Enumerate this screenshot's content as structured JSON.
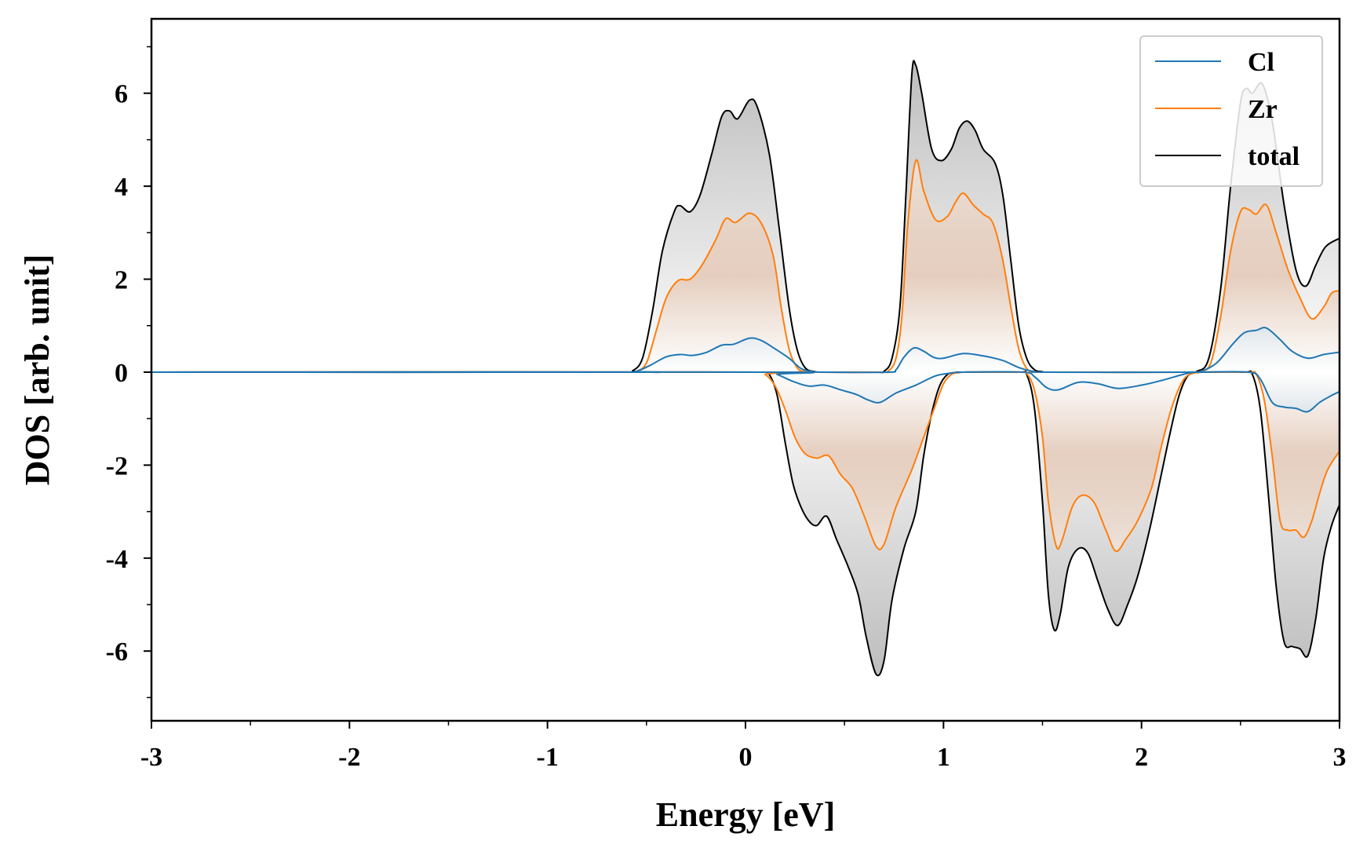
{
  "chart_data": {
    "type": "line",
    "xlabel": "Energy [eV]",
    "ylabel": "DOS [arb. unit]",
    "xlim": [
      -3,
      3
    ],
    "ylim": [
      -7.5,
      7.6
    ],
    "xticks": [
      -3,
      -2,
      -1,
      0,
      1,
      2,
      3
    ],
    "xtick_labels": [
      "-3",
      "-2",
      "-1",
      "0",
      "1",
      "2",
      "3"
    ],
    "yticks": [
      -6,
      -4,
      -2,
      0,
      2,
      4,
      6
    ],
    "ytick_labels": [
      "-6",
      "-4",
      "-2",
      "0",
      "2",
      "4",
      "6"
    ],
    "grid": false,
    "legend_position": "top-right",
    "filled_between_curves_and_zero": true,
    "series": [
      {
        "name": "Cl",
        "color": "#1f77b4",
        "up": [
          [
            -3,
            0
          ],
          [
            -0.62,
            0
          ],
          [
            -0.55,
            0.02
          ],
          [
            -0.48,
            0.15
          ],
          [
            -0.4,
            0.33
          ],
          [
            -0.33,
            0.38
          ],
          [
            -0.27,
            0.36
          ],
          [
            -0.2,
            0.42
          ],
          [
            -0.12,
            0.58
          ],
          [
            -0.06,
            0.6
          ],
          [
            0.02,
            0.73
          ],
          [
            0.08,
            0.68
          ],
          [
            0.15,
            0.5
          ],
          [
            0.22,
            0.3
          ],
          [
            0.28,
            0.08
          ],
          [
            0.34,
            0.01
          ],
          [
            0.4,
            0
          ],
          [
            0.72,
            0
          ],
          [
            0.76,
            0.05
          ],
          [
            0.8,
            0.32
          ],
          [
            0.85,
            0.52
          ],
          [
            0.9,
            0.45
          ],
          [
            0.95,
            0.32
          ],
          [
            1.0,
            0.3
          ],
          [
            1.1,
            0.4
          ],
          [
            1.2,
            0.35
          ],
          [
            1.3,
            0.25
          ],
          [
            1.38,
            0.1
          ],
          [
            1.45,
            0.02
          ],
          [
            1.52,
            0
          ],
          [
            2.22,
            0
          ],
          [
            2.3,
            0.02
          ],
          [
            2.38,
            0.2
          ],
          [
            2.46,
            0.6
          ],
          [
            2.52,
            0.85
          ],
          [
            2.58,
            0.9
          ],
          [
            2.63,
            0.95
          ],
          [
            2.7,
            0.7
          ],
          [
            2.76,
            0.45
          ],
          [
            2.84,
            0.3
          ],
          [
            2.92,
            0.38
          ],
          [
            3.0,
            0.43
          ]
        ],
        "down": [
          [
            -3,
            0
          ],
          [
            0.1,
            0
          ],
          [
            0.16,
            -0.05
          ],
          [
            0.24,
            -0.2
          ],
          [
            0.32,
            -0.3
          ],
          [
            0.4,
            -0.28
          ],
          [
            0.48,
            -0.38
          ],
          [
            0.56,
            -0.48
          ],
          [
            0.62,
            -0.6
          ],
          [
            0.68,
            -0.65
          ],
          [
            0.76,
            -0.45
          ],
          [
            0.86,
            -0.28
          ],
          [
            0.96,
            -0.08
          ],
          [
            1.04,
            -0.02
          ],
          [
            1.1,
            0
          ],
          [
            1.4,
            0
          ],
          [
            1.46,
            -0.1
          ],
          [
            1.52,
            -0.33
          ],
          [
            1.58,
            -0.38
          ],
          [
            1.68,
            -0.22
          ],
          [
            1.78,
            -0.25
          ],
          [
            1.88,
            -0.35
          ],
          [
            2.0,
            -0.28
          ],
          [
            2.1,
            -0.18
          ],
          [
            2.2,
            -0.06
          ],
          [
            2.25,
            -0.01
          ],
          [
            2.3,
            0
          ],
          [
            2.54,
            0
          ],
          [
            2.6,
            -0.15
          ],
          [
            2.66,
            -0.65
          ],
          [
            2.72,
            -0.75
          ],
          [
            2.78,
            -0.78
          ],
          [
            2.84,
            -0.85
          ],
          [
            2.9,
            -0.65
          ],
          [
            2.96,
            -0.5
          ],
          [
            3.0,
            -0.42
          ]
        ]
      },
      {
        "name": "Zr",
        "color": "#ff7f0e",
        "up": [
          [
            -3,
            0
          ],
          [
            -0.6,
            0
          ],
          [
            -0.55,
            0.02
          ],
          [
            -0.5,
            0.2
          ],
          [
            -0.45,
            0.9
          ],
          [
            -0.4,
            1.6
          ],
          [
            -0.34,
            1.97
          ],
          [
            -0.28,
            2.0
          ],
          [
            -0.22,
            2.3
          ],
          [
            -0.15,
            2.85
          ],
          [
            -0.1,
            3.3
          ],
          [
            -0.05,
            3.22
          ],
          [
            0.02,
            3.42
          ],
          [
            0.08,
            3.2
          ],
          [
            0.14,
            2.5
          ],
          [
            0.18,
            1.4
          ],
          [
            0.22,
            0.5
          ],
          [
            0.26,
            0.1
          ],
          [
            0.3,
            0.01
          ],
          [
            0.35,
            0
          ],
          [
            0.68,
            0
          ],
          [
            0.72,
            0.02
          ],
          [
            0.76,
            0.3
          ],
          [
            0.79,
            1.2
          ],
          [
            0.82,
            3.2
          ],
          [
            0.86,
            4.55
          ],
          [
            0.9,
            3.9
          ],
          [
            0.96,
            3.28
          ],
          [
            1.02,
            3.35
          ],
          [
            1.06,
            3.65
          ],
          [
            1.1,
            3.85
          ],
          [
            1.15,
            3.6
          ],
          [
            1.2,
            3.4
          ],
          [
            1.25,
            3.2
          ],
          [
            1.3,
            2.4
          ],
          [
            1.34,
            1.4
          ],
          [
            1.38,
            0.5
          ],
          [
            1.42,
            0.08
          ],
          [
            1.46,
            0.01
          ],
          [
            1.5,
            0
          ],
          [
            2.25,
            0
          ],
          [
            2.3,
            0.02
          ],
          [
            2.35,
            0.2
          ],
          [
            2.4,
            1.2
          ],
          [
            2.45,
            2.6
          ],
          [
            2.5,
            3.45
          ],
          [
            2.54,
            3.5
          ],
          [
            2.58,
            3.4
          ],
          [
            2.63,
            3.6
          ],
          [
            2.68,
            3.0
          ],
          [
            2.74,
            2.2
          ],
          [
            2.8,
            1.6
          ],
          [
            2.86,
            1.15
          ],
          [
            2.92,
            1.4
          ],
          [
            2.96,
            1.7
          ],
          [
            3.0,
            1.75
          ]
        ],
        "down": [
          [
            -3,
            0
          ],
          [
            0.05,
            0
          ],
          [
            0.1,
            -0.05
          ],
          [
            0.15,
            -0.3
          ],
          [
            0.2,
            -0.8
          ],
          [
            0.25,
            -1.4
          ],
          [
            0.3,
            -1.75
          ],
          [
            0.36,
            -1.85
          ],
          [
            0.42,
            -1.8
          ],
          [
            0.48,
            -2.2
          ],
          [
            0.54,
            -2.5
          ],
          [
            0.6,
            -3.1
          ],
          [
            0.66,
            -3.75
          ],
          [
            0.7,
            -3.7
          ],
          [
            0.76,
            -2.9
          ],
          [
            0.84,
            -2.1
          ],
          [
            0.9,
            -1.4
          ],
          [
            0.96,
            -0.7
          ],
          [
            1.0,
            -0.25
          ],
          [
            1.04,
            -0.05
          ],
          [
            1.08,
            -0.01
          ],
          [
            1.12,
            0
          ],
          [
            1.38,
            0
          ],
          [
            1.42,
            -0.03
          ],
          [
            1.46,
            -0.4
          ],
          [
            1.5,
            -1.4
          ],
          [
            1.53,
            -2.8
          ],
          [
            1.57,
            -3.75
          ],
          [
            1.6,
            -3.6
          ],
          [
            1.65,
            -2.9
          ],
          [
            1.7,
            -2.65
          ],
          [
            1.76,
            -2.8
          ],
          [
            1.82,
            -3.4
          ],
          [
            1.87,
            -3.85
          ],
          [
            1.92,
            -3.6
          ],
          [
            1.98,
            -3.2
          ],
          [
            2.05,
            -2.5
          ],
          [
            2.1,
            -1.6
          ],
          [
            2.15,
            -0.8
          ],
          [
            2.2,
            -0.25
          ],
          [
            2.24,
            -0.05
          ],
          [
            2.28,
            -0.01
          ],
          [
            2.32,
            0
          ],
          [
            2.54,
            0
          ],
          [
            2.58,
            -0.05
          ],
          [
            2.62,
            -0.6
          ],
          [
            2.66,
            -1.8
          ],
          [
            2.7,
            -3.2
          ],
          [
            2.74,
            -3.4
          ],
          [
            2.78,
            -3.4
          ],
          [
            2.82,
            -3.55
          ],
          [
            2.86,
            -3.2
          ],
          [
            2.9,
            -2.6
          ],
          [
            2.94,
            -2.1
          ],
          [
            3.0,
            -1.7
          ]
        ]
      },
      {
        "name": "total",
        "color": "#000000",
        "up": [
          [
            -3,
            0
          ],
          [
            -0.62,
            0
          ],
          [
            -0.57,
            0.03
          ],
          [
            -0.52,
            0.3
          ],
          [
            -0.47,
            1.3
          ],
          [
            -0.42,
            2.6
          ],
          [
            -0.36,
            3.45
          ],
          [
            -0.33,
            3.58
          ],
          [
            -0.28,
            3.45
          ],
          [
            -0.23,
            3.8
          ],
          [
            -0.17,
            4.7
          ],
          [
            -0.12,
            5.5
          ],
          [
            -0.08,
            5.62
          ],
          [
            -0.04,
            5.45
          ],
          [
            0.02,
            5.85
          ],
          [
            0.06,
            5.7
          ],
          [
            0.12,
            4.7
          ],
          [
            0.17,
            3.1
          ],
          [
            0.22,
            1.4
          ],
          [
            0.26,
            0.5
          ],
          [
            0.3,
            0.1
          ],
          [
            0.35,
            0.01
          ],
          [
            0.4,
            0
          ],
          [
            0.66,
            0
          ],
          [
            0.7,
            0.02
          ],
          [
            0.74,
            0.3
          ],
          [
            0.78,
            1.4
          ],
          [
            0.81,
            3.8
          ],
          [
            0.84,
            6.4
          ],
          [
            0.86,
            6.6
          ],
          [
            0.89,
            6.0
          ],
          [
            0.94,
            4.8
          ],
          [
            0.99,
            4.55
          ],
          [
            1.04,
            4.8
          ],
          [
            1.08,
            5.25
          ],
          [
            1.12,
            5.4
          ],
          [
            1.16,
            5.2
          ],
          [
            1.2,
            4.8
          ],
          [
            1.26,
            4.5
          ],
          [
            1.3,
            3.8
          ],
          [
            1.34,
            2.4
          ],
          [
            1.38,
            1.0
          ],
          [
            1.42,
            0.3
          ],
          [
            1.46,
            0.05
          ],
          [
            1.5,
            0.01
          ],
          [
            1.54,
            0
          ],
          [
            2.22,
            0
          ],
          [
            2.28,
            0.02
          ],
          [
            2.34,
            0.3
          ],
          [
            2.4,
            1.8
          ],
          [
            2.45,
            4.0
          ],
          [
            2.5,
            5.8
          ],
          [
            2.53,
            6.1
          ],
          [
            2.56,
            6.0
          ],
          [
            2.61,
            6.2
          ],
          [
            2.66,
            5.4
          ],
          [
            2.72,
            3.6
          ],
          [
            2.78,
            2.2
          ],
          [
            2.83,
            1.85
          ],
          [
            2.88,
            2.3
          ],
          [
            2.93,
            2.7
          ],
          [
            3.0,
            2.88
          ]
        ],
        "down": [
          [
            -3,
            0
          ],
          [
            0.08,
            0
          ],
          [
            0.12,
            -0.05
          ],
          [
            0.16,
            -0.5
          ],
          [
            0.2,
            -1.5
          ],
          [
            0.24,
            -2.4
          ],
          [
            0.28,
            -2.9
          ],
          [
            0.32,
            -3.2
          ],
          [
            0.36,
            -3.3
          ],
          [
            0.41,
            -3.1
          ],
          [
            0.46,
            -3.6
          ],
          [
            0.52,
            -4.2
          ],
          [
            0.57,
            -4.8
          ],
          [
            0.61,
            -5.7
          ],
          [
            0.66,
            -6.5
          ],
          [
            0.7,
            -6.2
          ],
          [
            0.74,
            -4.9
          ],
          [
            0.8,
            -3.8
          ],
          [
            0.86,
            -3.0
          ],
          [
            0.9,
            -1.8
          ],
          [
            0.94,
            -0.9
          ],
          [
            0.98,
            -0.3
          ],
          [
            1.02,
            -0.05
          ],
          [
            1.06,
            -0.01
          ],
          [
            1.1,
            0
          ],
          [
            1.38,
            0
          ],
          [
            1.42,
            -0.05
          ],
          [
            1.46,
            -0.8
          ],
          [
            1.5,
            -2.8
          ],
          [
            1.53,
            -4.8
          ],
          [
            1.56,
            -5.55
          ],
          [
            1.59,
            -5.2
          ],
          [
            1.63,
            -4.2
          ],
          [
            1.68,
            -3.8
          ],
          [
            1.73,
            -3.9
          ],
          [
            1.78,
            -4.5
          ],
          [
            1.83,
            -5.1
          ],
          [
            1.88,
            -5.45
          ],
          [
            1.93,
            -5.0
          ],
          [
            1.98,
            -4.4
          ],
          [
            2.04,
            -3.4
          ],
          [
            2.1,
            -2.2
          ],
          [
            2.15,
            -1.2
          ],
          [
            2.19,
            -0.5
          ],
          [
            2.23,
            -0.1
          ],
          [
            2.27,
            -0.01
          ],
          [
            2.3,
            0
          ],
          [
            2.52,
            0
          ],
          [
            2.56,
            -0.05
          ],
          [
            2.6,
            -0.8
          ],
          [
            2.64,
            -2.6
          ],
          [
            2.68,
            -4.6
          ],
          [
            2.72,
            -5.8
          ],
          [
            2.76,
            -5.9
          ],
          [
            2.8,
            -5.95
          ],
          [
            2.84,
            -6.1
          ],
          [
            2.88,
            -5.3
          ],
          [
            2.92,
            -4.0
          ],
          [
            2.96,
            -3.3
          ],
          [
            3.0,
            -2.85
          ]
        ]
      }
    ]
  }
}
